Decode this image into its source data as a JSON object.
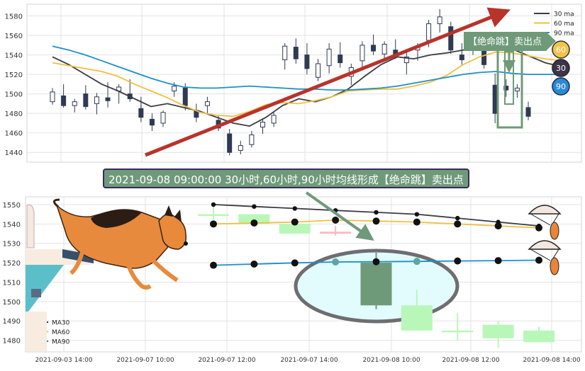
{
  "banner_text": "2021-09-08 09:00:00 30小时,60小时,90小时均线形成【绝命跳】卖出点",
  "callout_text": "【绝命跳】卖出点",
  "badges": [
    "60",
    "30",
    "90"
  ],
  "colors": {
    "ma30": "#3b3b44",
    "ma60": "#f0c040",
    "ma90": "#1f8fc8",
    "candle_up": "#b9f7b9",
    "candle_down": "#ffb6c1",
    "candle_top": "#2f3a52",
    "green_box": "#6f9a79",
    "red_arrow": "#b8332b"
  },
  "chart_data": [
    {
      "type": "line",
      "subtype": "candlestick",
      "legend": [
        "30 ma",
        "60 ma",
        "90 ma"
      ],
      "legend_position": "top-right",
      "yticks": [
        "1440",
        "1460",
        "1480",
        "1500",
        "1520",
        "1540",
        "1560",
        "1580"
      ],
      "ylim": [
        1430,
        1592
      ],
      "grid": true,
      "series": [
        {
          "name": "30 ma",
          "values": [
            1538,
            1530,
            1520,
            1510,
            1503,
            1495,
            1487,
            1490,
            1486,
            1482,
            1476,
            1470,
            1467,
            1476,
            1488,
            1495,
            1492,
            1497,
            1505,
            1518,
            1530,
            1538,
            1536,
            1540,
            1542,
            1545,
            1550,
            1552,
            1546,
            1539,
            1532,
            1528
          ]
        },
        {
          "name": "60 ma",
          "values": [
            1532,
            1529,
            1526,
            1523,
            1518,
            1510,
            1503,
            1496,
            1488,
            1481,
            1478,
            1477,
            1482,
            1489,
            1491,
            1490,
            1493,
            1497,
            1503,
            1504,
            1505,
            1505,
            1508,
            1512,
            1519,
            1530,
            1538,
            1543,
            1542,
            1539,
            1536,
            1534
          ]
        },
        {
          "name": "90 ma",
          "values": [
            1549,
            1545,
            1540,
            1534,
            1528,
            1522,
            1516,
            1511,
            1507,
            1506,
            1506,
            1507,
            1508,
            1507,
            1506,
            1505,
            1505,
            1504,
            1504,
            1505,
            1506,
            1508,
            1511,
            1514,
            1517,
            1520,
            1522,
            1523,
            1521,
            1520,
            1520,
            1520
          ]
        }
      ],
      "candles": [
        [
          1492,
          1506,
          1489,
          1502
        ],
        [
          1498,
          1510,
          1486,
          1488
        ],
        [
          1488,
          1495,
          1481,
          1492
        ],
        [
          1500,
          1509,
          1484,
          1487
        ],
        [
          1490,
          1501,
          1479,
          1497
        ],
        [
          1496,
          1512,
          1486,
          1493
        ],
        [
          1503,
          1510,
          1490,
          1507
        ],
        [
          1500,
          1515,
          1492,
          1495
        ],
        [
          1485,
          1497,
          1471,
          1476
        ],
        [
          1474,
          1480,
          1462,
          1468
        ],
        [
          1470,
          1483,
          1466,
          1481
        ],
        [
          1503,
          1512,
          1497,
          1508
        ],
        [
          1506,
          1511,
          1483,
          1488
        ],
        [
          1483,
          1490,
          1471,
          1476
        ],
        [
          1488,
          1497,
          1479,
          1492
        ],
        [
          1473,
          1478,
          1462,
          1465
        ],
        [
          1459,
          1464,
          1437,
          1440
        ],
        [
          1442,
          1452,
          1438,
          1447
        ],
        [
          1448,
          1462,
          1445,
          1458
        ],
        [
          1466,
          1475,
          1459,
          1471
        ],
        [
          1470,
          1481,
          1466,
          1478
        ],
        [
          1535,
          1552,
          1525,
          1549
        ],
        [
          1548,
          1557,
          1531,
          1536
        ],
        [
          1540,
          1552,
          1520,
          1526
        ],
        [
          1517,
          1536,
          1513,
          1531
        ],
        [
          1529,
          1552,
          1521,
          1546
        ],
        [
          1540,
          1553,
          1527,
          1532
        ],
        [
          1518,
          1531,
          1509,
          1527
        ],
        [
          1534,
          1554,
          1526,
          1550
        ],
        [
          1550,
          1561,
          1540,
          1544
        ],
        [
          1541,
          1554,
          1533,
          1551
        ],
        [
          1545,
          1556,
          1536,
          1540
        ],
        [
          1532,
          1543,
          1520,
          1538
        ],
        [
          1545,
          1552,
          1534,
          1548
        ],
        [
          1555,
          1576,
          1548,
          1572
        ],
        [
          1572,
          1587,
          1563,
          1579
        ],
        [
          1569,
          1574,
          1541,
          1545
        ],
        [
          1540,
          1552,
          1530,
          1535
        ],
        [
          1550,
          1563,
          1540,
          1556
        ],
        [
          1545,
          1550,
          1526,
          1530
        ],
        [
          1509,
          1521,
          1470,
          1480
        ],
        [
          1508,
          1515,
          1497,
          1504
        ],
        [
          1503,
          1510,
          1496,
          1506
        ],
        [
          1486,
          1492,
          1473,
          1477
        ]
      ]
    },
    {
      "type": "line",
      "subtype": "candlestick",
      "legend": [
        "MA30",
        "MA60",
        "MA90"
      ],
      "legend_position": "bottom-left",
      "xticks": [
        "2021-09-03 14:00",
        "2021-09-07 10:00",
        "2021-09-07 12:00",
        "2021-09-07 14:00",
        "2021-09-08 10:00",
        "2021-09-08 12:00",
        "2021-09-08 14:00"
      ],
      "yticks": [
        "1480",
        "1490",
        "1500",
        "1510",
        "1520",
        "1530",
        "1540",
        "1550"
      ],
      "ylim": [
        1474,
        1554
      ],
      "grid": true,
      "series": [
        {
          "name": "MA30",
          "values": [
            1550,
            1549,
            1548,
            1547,
            1546,
            1545,
            1543,
            1541,
            1539
          ]
        },
        {
          "name": "MA60",
          "values": [
            1540,
            1540.5,
            1541,
            1542,
            1541.5,
            1541,
            1540,
            1539,
            1538
          ]
        },
        {
          "name": "MA90",
          "values": [
            1518.7,
            1519.3,
            1519.9,
            1520.4,
            1520.5,
            1520.7,
            1520.9,
            1521.1,
            1521.3
          ]
        }
      ],
      "candles": [
        [
          1545,
          1549,
          1542,
          1545
        ],
        [
          1540,
          1545,
          1540,
          1545
        ],
        [
          1535,
          1540,
          1535,
          1540
        ],
        [
          1536,
          1539,
          1534,
          1535
        ],
        [
          1520,
          1526,
          1496,
          1498
        ],
        [
          1485,
          1506,
          1485,
          1498
        ],
        [
          1485,
          1494,
          1480,
          1485
        ],
        [
          1481,
          1490,
          1476,
          1488
        ],
        [
          1479,
          1487,
          1479,
          1485
        ]
      ]
    }
  ]
}
